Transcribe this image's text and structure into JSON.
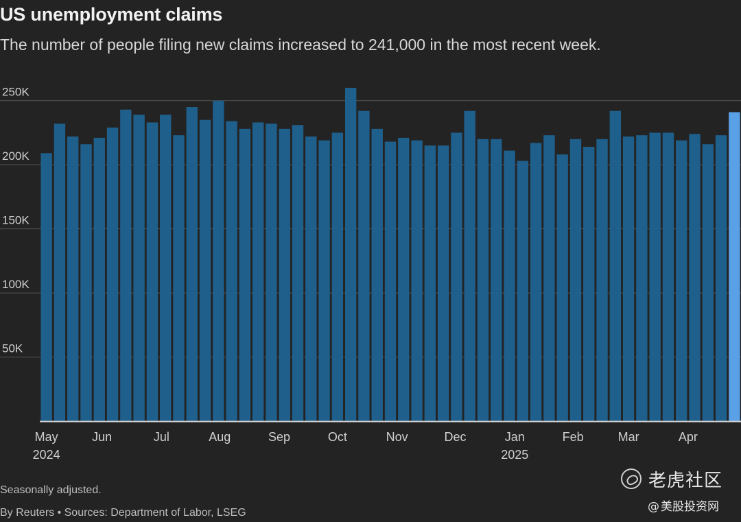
{
  "title": "US unemployment claims",
  "subtitle": "The number of people filing new claims increased to 241,000 in the most recent week.",
  "footnote": "Seasonally adjusted.",
  "byline": "By Reuters • Sources: Department of Labor, LSEG",
  "watermark": {
    "name": "老虎社区",
    "handle_prefix": "@",
    "handle": "美股投资网"
  },
  "colors": {
    "bar": "#1f5f8b",
    "highlight": "#5aa0e6",
    "axis": "#cfcfcf",
    "grid": "#555555",
    "text": "#cfcfcf"
  },
  "chart_data": {
    "type": "bar",
    "ylabel": "",
    "xlabel": "",
    "ylim": [
      0,
      260000
    ],
    "yticks": [
      {
        "value": 50000,
        "label": "50K"
      },
      {
        "value": 100000,
        "label": "100K"
      },
      {
        "value": 150000,
        "label": "150K"
      },
      {
        "value": 200000,
        "label": "200K"
      },
      {
        "value": 250000,
        "label": "250K"
      }
    ],
    "grid": "horizontal",
    "series": [
      {
        "values": [
          209000,
          232000,
          222000,
          216000,
          221000,
          229000,
          243000,
          239000,
          233000,
          239000,
          223000,
          245000,
          235000,
          250000,
          234000,
          228000,
          233000,
          232000,
          228000,
          231000,
          222000,
          219000,
          225000,
          260000,
          242000,
          228000,
          218000,
          221000,
          219000,
          215000,
          215000,
          225000,
          242000,
          220000,
          220000,
          211000,
          203000,
          217000,
          223000,
          208000,
          220000,
          214000,
          220000,
          242000,
          222000,
          223000,
          225000,
          225000,
          219000,
          224000,
          216000,
          223000,
          241000
        ]
      }
    ],
    "highlight_last": true,
    "x_month_labels": [
      {
        "label": "May",
        "year": "2024",
        "index": 0.5
      },
      {
        "label": "Jun",
        "index": 4.7
      },
      {
        "label": "Jul",
        "index": 9.2
      },
      {
        "label": "Aug",
        "index": 13.6
      },
      {
        "label": "Sep",
        "index": 18.1
      },
      {
        "label": "Oct",
        "index": 22.5
      },
      {
        "label": "Nov",
        "index": 27.0
      },
      {
        "label": "Dec",
        "index": 31.4
      },
      {
        "label": "Jan",
        "year": "2025",
        "index": 35.9
      },
      {
        "label": "Feb",
        "index": 40.3
      },
      {
        "label": "Mar",
        "index": 44.5
      },
      {
        "label": "Apr",
        "index": 49.0
      }
    ]
  }
}
